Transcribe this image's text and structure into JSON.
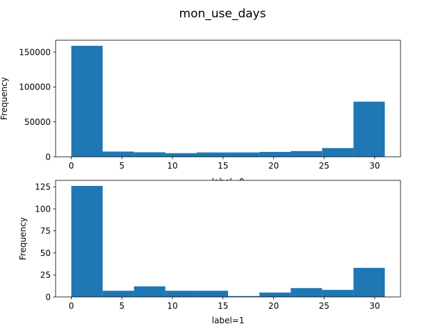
{
  "figure": {
    "suptitle": "mon_use_days",
    "bar_color": "#1f77b4"
  },
  "chart_data": [
    {
      "type": "bar",
      "title": "",
      "xlabel": "label=0",
      "ylabel": "Frequency",
      "bin_edges": [
        0,
        3.1,
        6.2,
        9.3,
        12.4,
        15.5,
        18.6,
        21.7,
        24.8,
        27.9,
        31
      ],
      "values": [
        159000,
        7500,
        6500,
        5200,
        6200,
        6200,
        7000,
        8200,
        12500,
        79000
      ],
      "xlim": [
        -1.55,
        32.55
      ],
      "ylim": [
        0,
        167000
      ],
      "xticks": [
        0,
        5,
        10,
        15,
        20,
        25,
        30
      ],
      "xtick_labels": [
        "0",
        "5",
        "10",
        "15",
        "20",
        "25",
        "30"
      ],
      "yticks": [
        0,
        50000,
        100000,
        150000
      ],
      "ytick_labels": [
        "0",
        "50000",
        "100000",
        "150000"
      ],
      "grid": false
    },
    {
      "type": "bar",
      "title": "",
      "xlabel": "label=1",
      "ylabel": "Frequency",
      "bin_edges": [
        0,
        3.1,
        6.2,
        9.3,
        12.4,
        15.5,
        18.6,
        21.7,
        24.8,
        27.9,
        31
      ],
      "values": [
        126,
        7,
        12,
        7,
        7,
        1,
        5,
        10,
        8,
        33
      ],
      "xlim": [
        -1.55,
        32.55
      ],
      "ylim": [
        0,
        132.3
      ],
      "xticks": [
        0,
        5,
        10,
        15,
        20,
        25,
        30
      ],
      "xtick_labels": [
        "0",
        "5",
        "10",
        "15",
        "20",
        "25",
        "30"
      ],
      "yticks": [
        0,
        25,
        50,
        75,
        100,
        125
      ],
      "ytick_labels": [
        "0",
        "25",
        "50",
        "75",
        "100",
        "125"
      ],
      "grid": false
    }
  ]
}
